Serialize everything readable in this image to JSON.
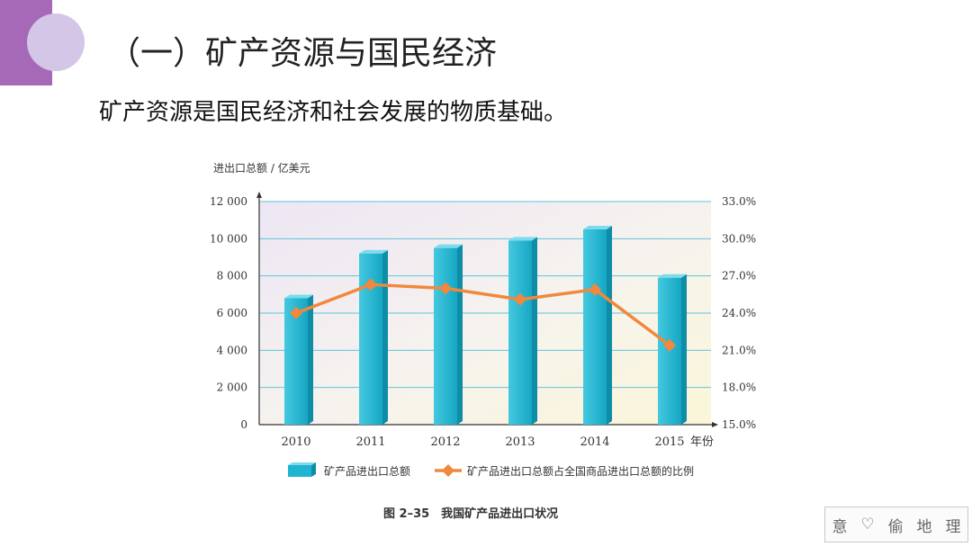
{
  "slide": {
    "title": "（一）矿产资源与国民经济",
    "subtitle": "矿产资源是国民经济和社会发展的物质基础。"
  },
  "colors": {
    "accent": "#a569b8",
    "accent_light": "#d3c6e6",
    "bar": "#1fb4d0",
    "line": "#f0883e"
  },
  "chart_data": {
    "type": "bar",
    "caption": "图 2–35　我国矿产品进出口状况",
    "ylabel": "进出口总额 / 亿美元",
    "xlabel": "年份",
    "categories": [
      "2010",
      "2011",
      "2012",
      "2013",
      "2014",
      "2015"
    ],
    "ylim": [
      0,
      12000
    ],
    "y_ticks": [
      "0",
      "2 000",
      "4 000",
      "6 000",
      "8 000",
      "10 000",
      "12 000"
    ],
    "y2lim": [
      15.0,
      33.0
    ],
    "y2_ticks": [
      "15.0%",
      "18.0%",
      "21.0%",
      "24.0%",
      "27.0%",
      "30.0%",
      "33.0%"
    ],
    "grid": true,
    "legend_position": "bottom",
    "series": [
      {
        "name": "矿产品进出口总额",
        "type": "bar",
        "axis": "left",
        "values": [
          6800,
          9200,
          9500,
          9900,
          10500,
          7900
        ]
      },
      {
        "name": "矿产品进出口总额占全国商品进出口总额的比例",
        "type": "line",
        "axis": "right",
        "values": [
          24.0,
          26.3,
          26.0,
          25.1,
          25.9,
          21.4
        ]
      }
    ]
  },
  "watermark": {
    "chars": [
      "意",
      "♡",
      "偷",
      "地",
      "理"
    ]
  }
}
